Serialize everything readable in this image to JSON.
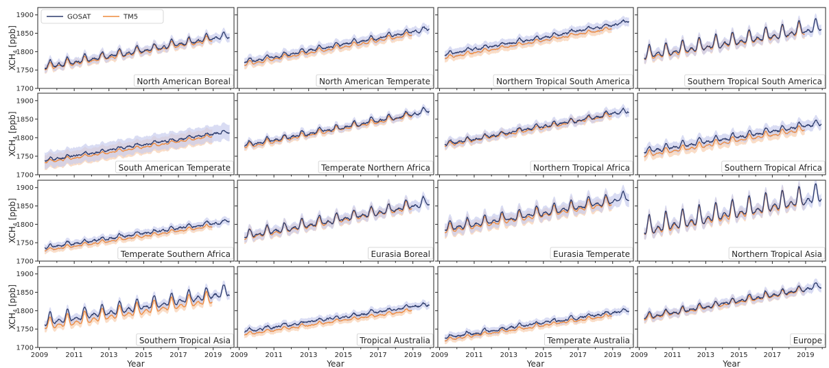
{
  "chart_data": {
    "type": "line",
    "layout": {
      "rows": 4,
      "cols": 4,
      "sharex": true,
      "sharey": true
    },
    "xlabel": "Year",
    "ylabel_main": "XCH",
    "ylabel_sub": "4",
    "ylabel_unit": " [ppb]",
    "xlim": [
      2008.9,
      2020.2
    ],
    "ylim": [
      1700,
      1920
    ],
    "xticks": [
      2009,
      2011,
      2013,
      2015,
      2017,
      2019
    ],
    "xtick_labels": [
      "2009",
      "2011",
      "2013",
      "2015",
      "2017",
      "2019"
    ],
    "yticks": [
      1700,
      1750,
      1800,
      1850,
      1900
    ],
    "ytick_labels": [
      "1700",
      "1750",
      "1800",
      "1850",
      "1900"
    ],
    "legend": {
      "location": "upper-left of first panel",
      "entries": [
        "GOSAT",
        "TM5"
      ]
    },
    "colors": {
      "GOSAT": "#2b3a6b",
      "TM5": "#ee8a3c",
      "GOSAT_band": "#c9cdee",
      "TM5_band": "#f8d2b4"
    },
    "gosat_end": 2019.95,
    "tm5_end": 2018.95,
    "panels": [
      {
        "label": "North American Boreal",
        "base": 1760,
        "trend": 8.0,
        "amp": 10,
        "bias": -3,
        "spread": 12
      },
      {
        "label": "North American Temperate",
        "base": 1773,
        "trend": 8.5,
        "amp": 6,
        "bias": -7,
        "spread": 12
      },
      {
        "label": "Northern Tropical South America",
        "base": 1793,
        "trend": 8.3,
        "amp": 4,
        "bias": -9,
        "spread": 12
      },
      {
        "label": "Southern Tropical South America",
        "base": 1792,
        "trend": 7.2,
        "amp": 18,
        "bias": -3,
        "spread": 14
      },
      {
        "label": "South American Temperate",
        "base": 1740,
        "trend": 7.3,
        "amp": 4,
        "bias": -6,
        "spread": 22
      },
      {
        "label": "Temperate Northern Africa",
        "base": 1780,
        "trend": 8.8,
        "amp": 7,
        "bias": -4,
        "spread": 10
      },
      {
        "label": "Northern Tropical Africa",
        "base": 1783,
        "trend": 8.5,
        "amp": 6,
        "bias": -3,
        "spread": 12
      },
      {
        "label": "Southern Tropical Africa",
        "base": 1764,
        "trend": 7.2,
        "amp": 8,
        "bias": -10,
        "spread": 14
      },
      {
        "label": "Temperate Southern Africa",
        "base": 1738,
        "trend": 6.8,
        "amp": 4,
        "bias": -8,
        "spread": 10
      },
      {
        "label": "Eurasia Boreal",
        "base": 1770,
        "trend": 8.5,
        "amp": 13,
        "bias": -3,
        "spread": 14
      },
      {
        "label": "Eurasia Temperate",
        "base": 1790,
        "trend": 7.8,
        "amp": 14,
        "bias": -5,
        "spread": 18
      },
      {
        "label": "Northern Tropical Asia",
        "base": 1790,
        "trend": 8.5,
        "amp": 26,
        "bias": -3,
        "spread": 16
      },
      {
        "label": "Southern Tropical Asia",
        "base": 1772,
        "trend": 7.5,
        "amp": 17,
        "bias": -12,
        "spread": 12
      },
      {
        "label": "Tropical Australia",
        "base": 1745,
        "trend": 6.8,
        "amp": 4,
        "bias": -9,
        "spread": 10
      },
      {
        "label": "Temperate Australia",
        "base": 1728,
        "trend": 7.0,
        "amp": 4,
        "bias": -7,
        "spread": 10
      },
      {
        "label": "Europe",
        "base": 1783,
        "trend": 8.0,
        "amp": 8,
        "bias": -3,
        "spread": 12
      }
    ]
  }
}
